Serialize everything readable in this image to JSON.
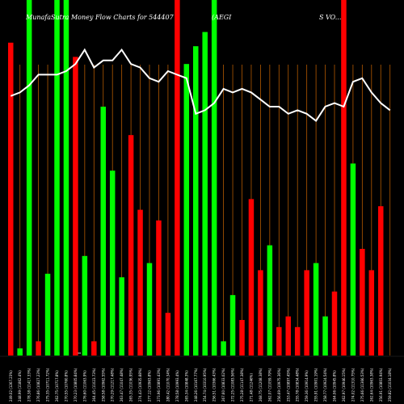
{
  "chart_data": {
    "type": "bar",
    "title": "MunafaSutra Money Flow Charts for 544407 (AEGIS VO...",
    "title_parts": [
      "MunafaSutra Money Flow Charts for 544407",
      "(AEGI",
      "S VO..."
    ],
    "x_axis_mark": "0",
    "ylim": [
      0,
      100
    ],
    "colors": {
      "up": "#00ff00",
      "down": "#ff0000",
      "grid": "#b35900",
      "line": "#ffffff",
      "background": "#000000"
    },
    "categories": [
      "249.02 (1267.23%)",
      "248.99 (11862.4%)",
      "278.38 (11417.33%)",
      "276.86 (10827.23%)",
      "275.35 (10711.72%)",
      "262.75 (10717.8%)",
      "270.55 (10760.8%)",
      "270.23 (10805.84%)",
      "276.60 (11063.9%)",
      "264.45 (11023.73%)",
      "258.58 (10962.55%)",
      "270.29 (11217.48%)",
      "263.47 (11047.48%)",
      "265.35 (11036.95%)",
      "274.43 (10935.88%)",
      "277.12 (10963.8%)",
      "273.96 (10891.43%)",
      "280.42 (11070.34%)",
      "278.58 (10993.4%)",
      "265.34 (10848.3%)",
      "248.26 (10167.77%)",
      "254.74 (10310.95%)",
      "256.51 (10366.43%)",
      "267.60 (10833.02%)",
      "272.25 (11083.56%)",
      "275.28 (11147.38%)",
      "271.48 (11246%)",
      "268.75 (11208.38%)",
      "262.07 (11059.79%)",
      "256.69 (10975.36%)",
      "253.47 (10897.45%)",
      "255.78 (10834.48%)",
      "259.36 (10914.9%)",
      "255.91 (10901.19%)",
      "258.77 (10924.54%)",
      "264.06 (10945.8%)",
      "262.97 (10946.15%)",
      "274.02 (11310.75%)",
      "275.66 (11366.53%)",
      "262.64 (10963.38%)",
      "256.91 (10803.94%)",
      "259.82 (11034.18%)"
    ],
    "series": [
      {
        "values": [
          88,
          2,
          100,
          4,
          23,
          100,
          100,
          84,
          28,
          4,
          70,
          52,
          22,
          62,
          41,
          26,
          38,
          12,
          100,
          82,
          87,
          91,
          100,
          4,
          17,
          10,
          44,
          24,
          31,
          8,
          11,
          8,
          24,
          26,
          11,
          18,
          100,
          54,
          30,
          24,
          42,
          0
        ],
        "direction": [
          "down",
          "up",
          "up",
          "down",
          "up",
          "up",
          "up",
          "down",
          "up",
          "down",
          "up",
          "up",
          "up",
          "down",
          "down",
          "up",
          "down",
          "down",
          "down",
          "up",
          "up",
          "up",
          "up",
          "up",
          "up",
          "down",
          "down",
          "down",
          "up",
          "down",
          "down",
          "down",
          "down",
          "up",
          "up",
          "down",
          "down",
          "up",
          "down",
          "down",
          "down",
          "down"
        ]
      }
    ],
    "line": [
      73,
      74,
      76,
      79,
      79,
      79,
      80,
      82,
      86,
      81,
      83,
      83,
      86,
      82,
      81,
      78,
      77,
      80,
      79,
      78,
      68,
      69,
      71,
      75,
      74,
      75,
      74,
      72,
      70,
      70,
      68,
      69,
      68,
      66,
      70,
      71,
      70,
      77,
      78,
      74,
      71,
      69
    ]
  }
}
